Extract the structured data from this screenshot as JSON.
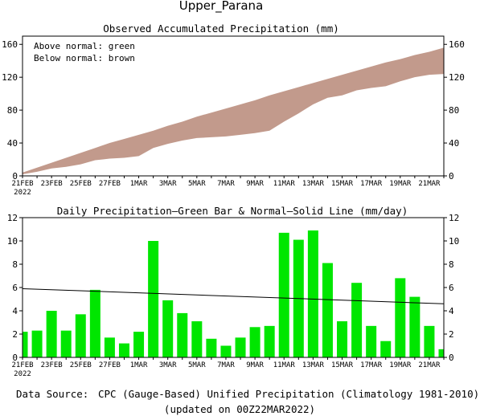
{
  "title": "Upper_Parana",
  "chart_data": [
    {
      "type": "area",
      "title": "Observed Accumulated Precipitation (mm)",
      "legend": [
        "Above normal: green",
        "Below normal: brown"
      ],
      "legend_placement": "top-left",
      "colors": {
        "above": "#00c000",
        "below": "#c29a8c"
      },
      "x": [
        "21FEB",
        "22FEB",
        "23FEB",
        "24FEB",
        "25FEB",
        "26FEB",
        "27FEB",
        "28FEB",
        "1MAR",
        "2MAR",
        "3MAR",
        "4MAR",
        "5MAR",
        "6MAR",
        "7MAR",
        "8MAR",
        "9MAR",
        "10MAR",
        "11MAR",
        "12MAR",
        "13MAR",
        "14MAR",
        "15MAR",
        "16MAR",
        "17MAR",
        "18MAR",
        "19MAR",
        "20MAR",
        "21MAR",
        "22MAR"
      ],
      "series": [
        {
          "values": [
            2,
            5,
            9,
            11,
            14,
            19,
            21,
            22,
            24,
            34,
            39,
            43,
            46,
            47,
            48,
            50,
            52,
            55,
            66,
            76,
            87,
            95,
            98,
            104,
            107,
            109,
            115,
            120,
            123,
            124
          ]
        },
        {
          "values": [
            4,
            10,
            16,
            22,
            28,
            34,
            40,
            45,
            50,
            55,
            61,
            66,
            72,
            77,
            82,
            87,
            92,
            98,
            103,
            108,
            113,
            118,
            123,
            128,
            133,
            138,
            142,
            147,
            151,
            156
          ]
        }
      ],
      "ylim": [
        0,
        170
      ],
      "yticks": [
        0,
        40,
        80,
        120,
        160
      ],
      "xtick_labels": [
        "21FEB",
        "23FEB",
        "25FEB",
        "27FEB",
        "1MAR",
        "3MAR",
        "5MAR",
        "7MAR",
        "9MAR",
        "11MAR",
        "13MAR",
        "15MAR",
        "17MAR",
        "19MAR",
        "21MAR"
      ],
      "year_label": "2022"
    },
    {
      "type": "bar",
      "title": "Daily Precipitation—Green Bar & Normal—Solid Line (mm/day)",
      "colors": {
        "bar": "#00e600",
        "line": "#000000"
      },
      "x": [
        "21FEB",
        "22FEB",
        "23FEB",
        "24FEB",
        "25FEB",
        "26FEB",
        "27FEB",
        "28FEB",
        "1MAR",
        "2MAR",
        "3MAR",
        "4MAR",
        "5MAR",
        "6MAR",
        "7MAR",
        "8MAR",
        "9MAR",
        "10MAR",
        "11MAR",
        "12MAR",
        "13MAR",
        "14MAR",
        "15MAR",
        "16MAR",
        "17MAR",
        "18MAR",
        "19MAR",
        "20MAR",
        "21MAR",
        "22MAR"
      ],
      "series": [
        {
          "values": [
            2.2,
            2.3,
            4.0,
            2.3,
            3.7,
            5.8,
            1.7,
            1.2,
            2.2,
            10.0,
            4.9,
            3.8,
            3.1,
            1.6,
            1.0,
            1.7,
            2.6,
            2.7,
            10.7,
            10.1,
            10.9,
            8.1,
            3.1,
            6.4,
            2.7,
            1.4,
            6.8,
            5.2,
            2.7,
            0.7
          ]
        }
      ],
      "normal_line": {
        "start": 5.9,
        "end": 4.6
      },
      "ylim": [
        0,
        12
      ],
      "yticks": [
        0,
        2,
        4,
        6,
        8,
        10,
        12
      ],
      "xtick_labels": [
        "21FEB",
        "23FEB",
        "25FEB",
        "27FEB",
        "1MAR",
        "3MAR",
        "5MAR",
        "7MAR",
        "9MAR",
        "11MAR",
        "13MAR",
        "15MAR",
        "17MAR",
        "19MAR",
        "21MAR"
      ],
      "year_label": "2022"
    }
  ],
  "footer": {
    "source_label": "Data Source:",
    "source_label_color": "#e04040",
    "source_text": "CPC (Gauge-Based) Unified Precipitation (Climatology 1981-2010)",
    "updated": "(updated on 00Z22MAR2022)"
  }
}
